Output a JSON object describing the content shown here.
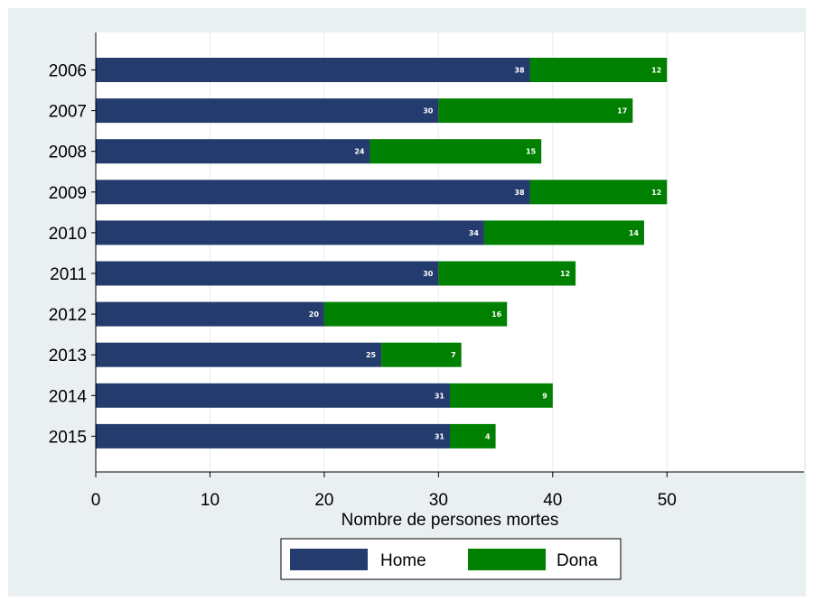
{
  "chart_data": {
    "type": "bar",
    "orientation": "horizontal",
    "stacked": true,
    "categories": [
      "2006",
      "2007",
      "2008",
      "2009",
      "2010",
      "2011",
      "2012",
      "2013",
      "2014",
      "2015"
    ],
    "series": [
      {
        "name": "Home",
        "values": [
          38,
          30,
          24,
          38,
          34,
          30,
          20,
          25,
          31,
          31
        ],
        "color": "#243b6e"
      },
      {
        "name": "Dona",
        "values": [
          12,
          17,
          15,
          12,
          14,
          12,
          16,
          7,
          9,
          4
        ],
        "color": "#008000"
      }
    ],
    "title": "",
    "xlabel": "Nombre de persones mortes",
    "ylabel": "",
    "xlim": [
      0,
      62
    ],
    "xticks": [
      "0",
      "10",
      "20",
      "30",
      "40",
      "50"
    ],
    "grid": true,
    "legend_position": "bottom"
  }
}
